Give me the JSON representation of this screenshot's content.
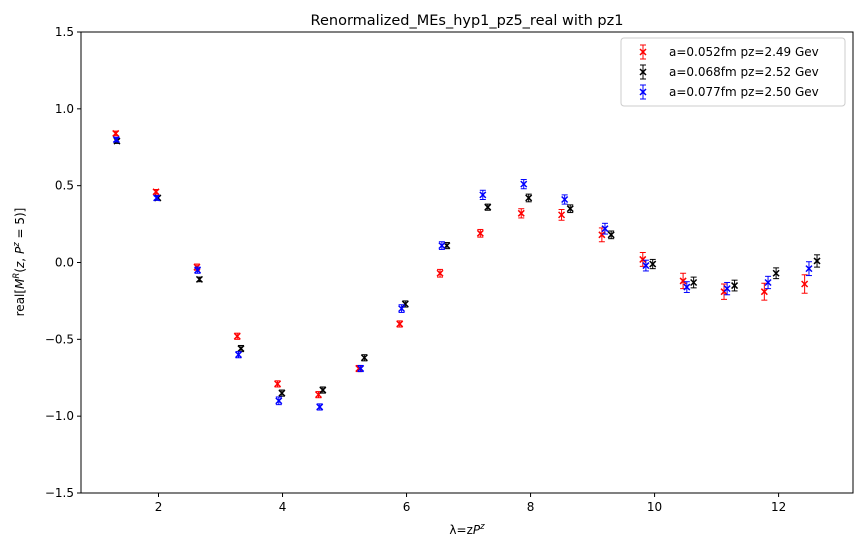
{
  "chart_data": {
    "type": "scatter",
    "title": "Renormalized_MEs_hyp1_pz5_real with pz1",
    "xlabel": "λ=zP^z",
    "ylabel": "real[M^R(z, P^z = 5)]",
    "xlim": [
      0.75,
      13.2
    ],
    "ylim": [
      -1.5,
      1.5
    ],
    "x_ticks": [
      "2",
      "4",
      "6",
      "8",
      "10",
      "12"
    ],
    "y_ticks": [
      "−1.5",
      "−1.0",
      "−0.5",
      "0.0",
      "0.5",
      "1.0",
      "1.5"
    ],
    "grid": false,
    "legend_position": "top-right",
    "series": [
      {
        "name": "a=0.052fm pz=2.49 Gev",
        "color": "#ff0000",
        "points": [
          {
            "x": 1.31,
            "y": 0.84,
            "err": 0.015
          },
          {
            "x": 1.96,
            "y": 0.46,
            "err": 0.015
          },
          {
            "x": 2.62,
            "y": -0.03,
            "err": 0.02
          },
          {
            "x": 3.27,
            "y": -0.48,
            "err": 0.02
          },
          {
            "x": 3.92,
            "y": -0.79,
            "err": 0.02
          },
          {
            "x": 4.58,
            "y": -0.86,
            "err": 0.02
          },
          {
            "x": 5.23,
            "y": -0.69,
            "err": 0.02
          },
          {
            "x": 5.89,
            "y": -0.4,
            "err": 0.02
          },
          {
            "x": 6.54,
            "y": -0.07,
            "err": 0.025
          },
          {
            "x": 7.19,
            "y": 0.19,
            "err": 0.025
          },
          {
            "x": 7.85,
            "y": 0.32,
            "err": 0.03
          },
          {
            "x": 8.5,
            "y": 0.31,
            "err": 0.035
          },
          {
            "x": 9.15,
            "y": 0.18,
            "err": 0.045
          },
          {
            "x": 9.81,
            "y": 0.02,
            "err": 0.045
          },
          {
            "x": 10.46,
            "y": -0.12,
            "err": 0.05
          },
          {
            "x": 11.12,
            "y": -0.19,
            "err": 0.05
          },
          {
            "x": 11.77,
            "y": -0.19,
            "err": 0.055
          },
          {
            "x": 12.42,
            "y": -0.14,
            "err": 0.06
          }
        ]
      },
      {
        "name": "a=0.068fm pz=2.52 Gev",
        "color": "#000000",
        "points": [
          {
            "x": 1.33,
            "y": 0.79,
            "err": 0.015
          },
          {
            "x": 1.99,
            "y": 0.42,
            "err": 0.015
          },
          {
            "x": 2.66,
            "y": -0.11,
            "err": 0.015
          },
          {
            "x": 3.33,
            "y": -0.56,
            "err": 0.02
          },
          {
            "x": 3.99,
            "y": -0.85,
            "err": 0.02
          },
          {
            "x": 4.65,
            "y": -0.83,
            "err": 0.02
          },
          {
            "x": 5.32,
            "y": -0.62,
            "err": 0.02
          },
          {
            "x": 5.98,
            "y": -0.27,
            "err": 0.02
          },
          {
            "x": 6.65,
            "y": 0.11,
            "err": 0.02
          },
          {
            "x": 7.31,
            "y": 0.36,
            "err": 0.02
          },
          {
            "x": 7.97,
            "y": 0.42,
            "err": 0.025
          },
          {
            "x": 8.64,
            "y": 0.35,
            "err": 0.025
          },
          {
            "x": 9.3,
            "y": 0.18,
            "err": 0.025
          },
          {
            "x": 9.97,
            "y": -0.01,
            "err": 0.03
          },
          {
            "x": 10.63,
            "y": -0.13,
            "err": 0.035
          },
          {
            "x": 11.29,
            "y": -0.15,
            "err": 0.035
          },
          {
            "x": 11.96,
            "y": -0.07,
            "err": 0.035
          },
          {
            "x": 12.62,
            "y": 0.01,
            "err": 0.04
          }
        ]
      },
      {
        "name": "a=0.077fm pz=2.50 Gev",
        "color": "#0000ff",
        "points": [
          {
            "x": 1.32,
            "y": 0.8,
            "err": 0.015
          },
          {
            "x": 1.97,
            "y": 0.42,
            "err": 0.015
          },
          {
            "x": 2.63,
            "y": -0.05,
            "err": 0.02
          },
          {
            "x": 3.29,
            "y": -0.6,
            "err": 0.02
          },
          {
            "x": 3.94,
            "y": -0.9,
            "err": 0.025
          },
          {
            "x": 4.6,
            "y": -0.94,
            "err": 0.02
          },
          {
            "x": 5.26,
            "y": -0.69,
            "err": 0.02
          },
          {
            "x": 5.92,
            "y": -0.3,
            "err": 0.025
          },
          {
            "x": 6.57,
            "y": 0.11,
            "err": 0.025
          },
          {
            "x": 7.23,
            "y": 0.44,
            "err": 0.03
          },
          {
            "x": 7.89,
            "y": 0.51,
            "err": 0.03
          },
          {
            "x": 8.55,
            "y": 0.41,
            "err": 0.03
          },
          {
            "x": 9.2,
            "y": 0.22,
            "err": 0.035
          },
          {
            "x": 9.86,
            "y": -0.02,
            "err": 0.035
          },
          {
            "x": 10.52,
            "y": -0.16,
            "err": 0.035
          },
          {
            "x": 11.17,
            "y": -0.17,
            "err": 0.04
          },
          {
            "x": 11.83,
            "y": -0.13,
            "err": 0.04
          },
          {
            "x": 12.49,
            "y": -0.04,
            "err": 0.045
          }
        ]
      }
    ]
  }
}
